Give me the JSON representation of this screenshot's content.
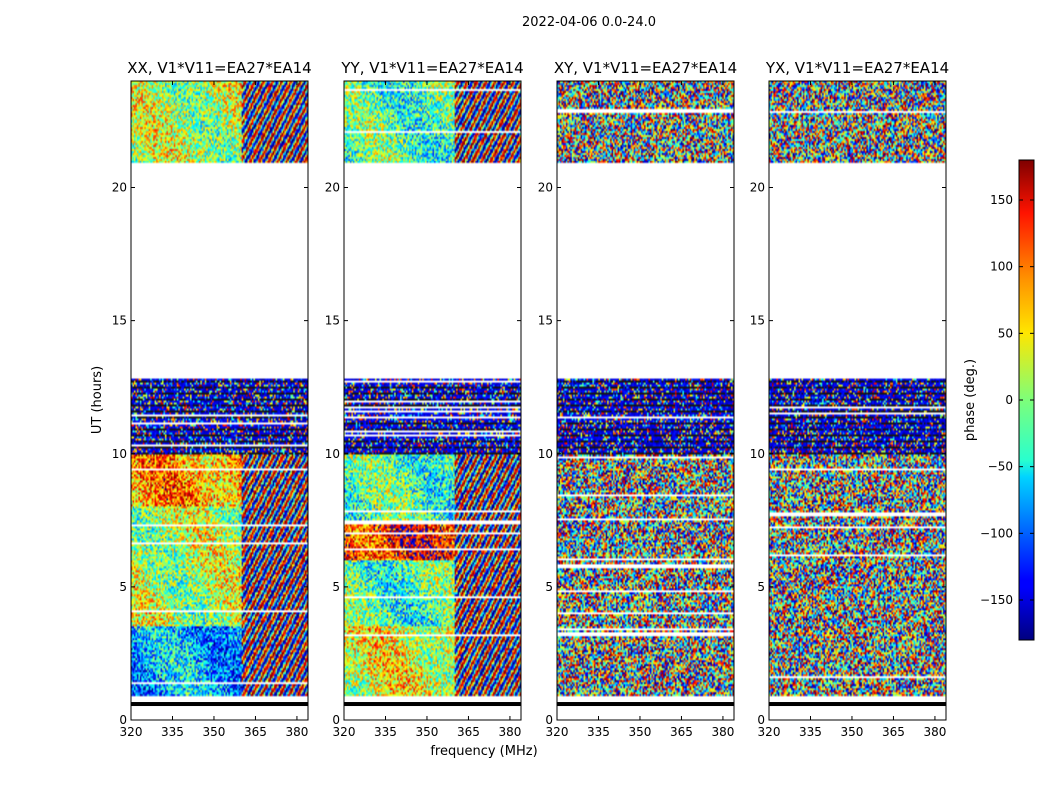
{
  "figure": {
    "suptitle": "2022-04-06 0.0-24.0",
    "xlabel": "frequency (MHz)",
    "ylabel": "UT (hours)"
  },
  "chart_data": {
    "type": "heatmap",
    "x_range_mhz": [
      320,
      384
    ],
    "y_range_hours": [
      0,
      24
    ],
    "x_ticks": [
      320,
      335,
      350,
      365,
      380
    ],
    "y_ticks": [
      0,
      5,
      10,
      15,
      20
    ],
    "panels": [
      {
        "title": "XX, V1*V11=EA27*EA14",
        "mode": "xx"
      },
      {
        "title": "YY, V1*V11=EA27*EA14",
        "mode": "yy"
      },
      {
        "title": "XY, V1*V11=EA27*EA14",
        "mode": "cross"
      },
      {
        "title": "YX, V1*V11=EA27*EA14",
        "mode": "cross"
      }
    ],
    "data_hour_ranges": [
      [
        0.9,
        12.8
      ],
      [
        20.9,
        24.0
      ]
    ],
    "flagged_hour_ranges": [
      [
        12.8,
        20.9
      ]
    ],
    "colorbar": {
      "label": "phase (deg.)",
      "colormap": "jet",
      "range": [
        -180,
        180
      ],
      "ticks": [
        150,
        100,
        50,
        0,
        -50,
        -100,
        -150
      ],
      "tick_labels": [
        "150",
        "100",
        "50",
        "0",
        "−50",
        "−100",
        "−150"
      ]
    }
  }
}
